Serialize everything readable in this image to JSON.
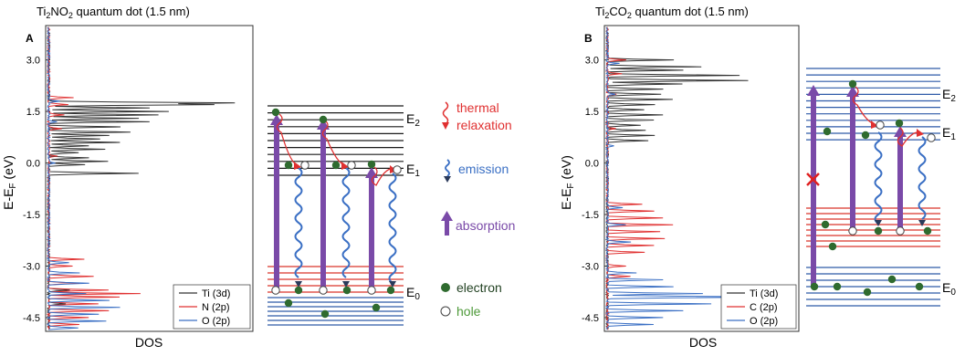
{
  "chart_data": [
    {
      "type": "line",
      "panel_label": "A",
      "title_parts": [
        "Ti",
        "2",
        "NO",
        "2",
        " quantum dot (1.5 nm)"
      ],
      "ylabel": "E-E",
      "ylabel_sub": "F",
      "ylabel_unit": " (eV)",
      "xlabel": "DOS",
      "ylim": [
        -4.9,
        4.0
      ],
      "yticks": [
        "3.0",
        "1.5",
        "0.0",
        "-1.5",
        "-3.0",
        "-4.5"
      ],
      "ytick_values": [
        3.0,
        1.5,
        0.0,
        -1.5,
        -3.0,
        -4.5
      ],
      "legend": [
        "Ti (3d)",
        "N (2p)",
        "O (2p)"
      ],
      "series": [
        {
          "name": "Ti (3d)",
          "color": "#333333",
          "peaks": [
            [
              1.75,
              0.9
            ],
            [
              1.7,
              0.8
            ],
            [
              1.6,
              0.5
            ],
            [
              1.5,
              0.6
            ],
            [
              1.4,
              0.55
            ],
            [
              1.3,
              0.45
            ],
            [
              1.2,
              0.5
            ],
            [
              1.05,
              0.35
            ],
            [
              0.9,
              0.4
            ],
            [
              0.8,
              0.3
            ],
            [
              0.7,
              0.25
            ],
            [
              0.6,
              0.35
            ],
            [
              0.5,
              0.2
            ],
            [
              0.4,
              0.28
            ],
            [
              0.3,
              0.15
            ],
            [
              0.15,
              0.2
            ],
            [
              0.05,
              0.3
            ],
            [
              -0.05,
              0.18
            ],
            [
              -0.3,
              0.45
            ],
            [
              -3.7,
              0.1
            ],
            [
              -4.1,
              0.08
            ]
          ]
        },
        {
          "name": "N (2p)",
          "color": "#e03030",
          "peaks": [
            [
              1.9,
              0.12
            ],
            [
              1.7,
              0.1
            ],
            [
              1.4,
              0.08
            ],
            [
              1.0,
              0.06
            ],
            [
              0.2,
              0.04
            ],
            [
              -2.8,
              0.18
            ],
            [
              -3.0,
              0.12
            ],
            [
              -3.3,
              0.22
            ],
            [
              -3.5,
              0.15
            ],
            [
              -3.7,
              0.3
            ],
            [
              -3.8,
              0.45
            ],
            [
              -3.9,
              0.35
            ],
            [
              -4.1,
              0.25
            ],
            [
              -4.3,
              0.3
            ],
            [
              -4.5,
              0.2
            ],
            [
              -4.7,
              0.15
            ]
          ]
        },
        {
          "name": "O (2p)",
          "color": "#3a6fc4",
          "peaks": [
            [
              1.8,
              0.05
            ],
            [
              1.2,
              0.04
            ],
            [
              0.0,
              0.03
            ],
            [
              -2.9,
              0.1
            ],
            [
              -3.2,
              0.15
            ],
            [
              -3.5,
              0.2
            ],
            [
              -3.8,
              0.18
            ],
            [
              -4.0,
              0.3
            ],
            [
              -4.2,
              0.35
            ],
            [
              -4.4,
              0.25
            ],
            [
              -4.6,
              0.28
            ],
            [
              -4.8,
              0.15
            ]
          ]
        }
      ]
    },
    {
      "type": "line",
      "panel_label": "B",
      "title_parts": [
        "Ti",
        "2",
        "CO",
        "2",
        " quantum dot (1.5 nm)"
      ],
      "ylabel": "E-E",
      "ylabel_sub": "F",
      "ylabel_unit": " (eV)",
      "xlabel": "DOS",
      "ylim": [
        -4.9,
        4.0
      ],
      "yticks": [
        "3.0",
        "1.5",
        "0.0",
        "-1.5",
        "-3.0",
        "-4.5"
      ],
      "ytick_values": [
        3.0,
        1.5,
        0.0,
        -1.5,
        -3.0,
        -4.5
      ],
      "legend": [
        "Ti (3d)",
        "C (2p)",
        "O (2p)"
      ],
      "series": [
        {
          "name": "Ti (3d)",
          "color": "#333333",
          "peaks": [
            [
              3.0,
              0.35
            ],
            [
              2.8,
              0.5
            ],
            [
              2.7,
              0.4
            ],
            [
              2.55,
              0.7
            ],
            [
              2.4,
              0.75
            ],
            [
              2.3,
              0.4
            ],
            [
              2.15,
              0.3
            ],
            [
              2.0,
              0.28
            ],
            [
              1.85,
              0.35
            ],
            [
              1.7,
              0.25
            ],
            [
              1.55,
              0.2
            ],
            [
              1.4,
              0.3
            ],
            [
              1.25,
              0.25
            ],
            [
              1.1,
              0.18
            ],
            [
              0.95,
              0.2
            ],
            [
              0.8,
              0.25
            ],
            [
              0.65,
              0.22
            ]
          ]
        },
        {
          "name": "C (2p)",
          "color": "#e03030",
          "peaks": [
            [
              3.0,
              0.1
            ],
            [
              2.6,
              0.08
            ],
            [
              2.0,
              0.05
            ],
            [
              1.0,
              0.04
            ],
            [
              -1.2,
              0.18
            ],
            [
              -1.4,
              0.25
            ],
            [
              -1.6,
              0.3
            ],
            [
              -1.8,
              0.35
            ],
            [
              -2.0,
              0.28
            ],
            [
              -2.2,
              0.3
            ],
            [
              -2.4,
              0.25
            ],
            [
              -2.6,
              0.2
            ],
            [
              -3.0,
              0.1
            ],
            [
              -3.3,
              0.12
            ]
          ]
        },
        {
          "name": "O (2p)",
          "color": "#3a6fc4",
          "peaks": [
            [
              2.9,
              0.06
            ],
            [
              2.0,
              0.04
            ],
            [
              0.5,
              0.03
            ],
            [
              -1.3,
              0.08
            ],
            [
              -1.8,
              0.1
            ],
            [
              -2.3,
              0.12
            ],
            [
              -3.2,
              0.15
            ],
            [
              -3.4,
              0.3
            ],
            [
              -3.6,
              0.35
            ],
            [
              -3.8,
              0.5
            ],
            [
              -3.9,
              0.9
            ],
            [
              -4.1,
              0.55
            ],
            [
              -4.3,
              0.4
            ],
            [
              -4.5,
              0.3
            ],
            [
              -4.7,
              0.25
            ]
          ]
        }
      ]
    }
  ],
  "diagram_a": {
    "labels": {
      "e2": "E",
      "e2_sub": "2",
      "e1": "E",
      "e1_sub": "1",
      "e0": "E",
      "e0_sub": "0"
    }
  },
  "diagram_b": {
    "labels": {
      "e2": "E",
      "e2_sub": "2",
      "e1": "E",
      "e1_sub": "1",
      "e0": "E",
      "e0_sub": "0"
    }
  },
  "legend_mid": {
    "thermal_1": "thermal",
    "thermal_2": "relaxation",
    "emission": "emission",
    "absorption": "absorption",
    "electron": "electron",
    "hole": "hole"
  },
  "colors": {
    "black_level": "#1a1a1a",
    "blue_level": "#2e5aa8",
    "red_level": "#d9342b",
    "purple": "#6a3f9e",
    "electron": "#2f6b2f",
    "thermal": "#e03030",
    "emission": "#3a6fc4",
    "absorption": "#7a4aa8",
    "hole_text": "#4e9a3a",
    "electron_text": "#1f3f1f"
  }
}
